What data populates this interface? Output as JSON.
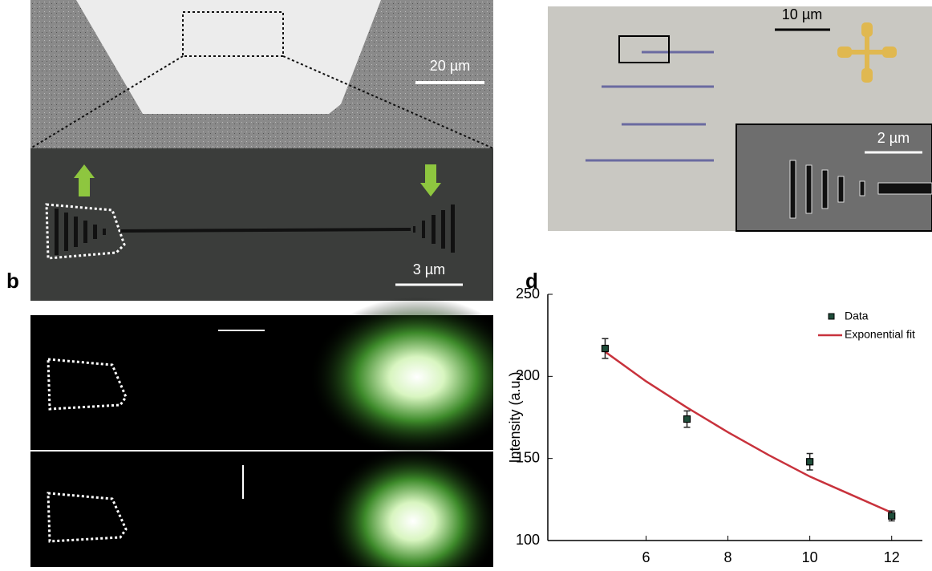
{
  "panels": {
    "a_scale_top": "20 µm",
    "a_scale_bottom": "3 µm",
    "b_label": "b",
    "c_scale_main": "10 µm",
    "c_scale_inset": "2 µm",
    "d_label": "d"
  },
  "chart_data": {
    "type": "scatter",
    "ylabel": "Intensity (a.u.)",
    "xlim": [
      3.6,
      12.75
    ],
    "xticks": [
      6,
      8,
      10,
      12
    ],
    "ylim": [
      100,
      250
    ],
    "yticks": [
      100,
      150,
      200,
      250
    ],
    "legend": "upper right",
    "series": [
      {
        "name": "Data",
        "color": "#1f4d3a",
        "x": [
          5,
          7,
          10,
          12
        ],
        "values": [
          217,
          174,
          148,
          115
        ],
        "errors": [
          6,
          5,
          5,
          3
        ]
      },
      {
        "name": "Exponential fit",
        "color": "#c8323c",
        "x": [
          5,
          6,
          7,
          8,
          9,
          10,
          11,
          12
        ],
        "values": [
          215,
          197,
          181,
          166,
          152,
          139,
          128,
          117
        ]
      }
    ]
  }
}
